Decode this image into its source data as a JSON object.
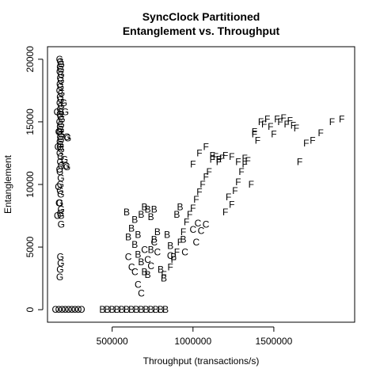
{
  "chart_data": {
    "type": "scatter",
    "title_line1": "SyncClock Partitioned",
    "title_line2": "Entanglement vs. Throughput",
    "xlabel": "Throughput (transactions/s)",
    "ylabel": "Entanglement",
    "xlim": [
      100000,
      2000000
    ],
    "ylim": [
      -1000,
      21000
    ],
    "x_ticks": [
      500000,
      1000000,
      1500000
    ],
    "x_tick_labels": [
      "500000",
      "1000000",
      "1500000"
    ],
    "y_ticks": [
      0,
      5000,
      10000,
      15000,
      20000
    ],
    "y_tick_labels": [
      "0",
      "5000",
      "10000",
      "15000",
      "20000"
    ],
    "grid": false,
    "series": [
      {
        "symbol": "G",
        "points": [
          [
            175000,
            20000
          ],
          [
            180000,
            19800
          ],
          [
            185000,
            19600
          ],
          [
            178000,
            19400
          ],
          [
            182000,
            19200
          ],
          [
            176000,
            19000
          ],
          [
            184000,
            18800
          ],
          [
            179000,
            18500
          ],
          [
            183000,
            18300
          ],
          [
            177000,
            18000
          ],
          [
            181000,
            17800
          ],
          [
            175000,
            17500
          ],
          [
            186000,
            17300
          ],
          [
            178000,
            17000
          ],
          [
            182000,
            16800
          ],
          [
            176000,
            16500
          ],
          [
            185000,
            16300
          ],
          [
            179000,
            16000
          ],
          [
            183000,
            15800
          ],
          [
            177000,
            15600
          ],
          [
            181000,
            15400
          ],
          [
            188000,
            15200
          ],
          [
            175000,
            15000
          ],
          [
            184000,
            14800
          ],
          [
            178000,
            14600
          ],
          [
            182000,
            14400
          ],
          [
            176000,
            14200
          ],
          [
            185000,
            14000
          ],
          [
            179000,
            13800
          ],
          [
            183000,
            13600
          ],
          [
            177000,
            13400
          ],
          [
            181000,
            13200
          ],
          [
            178000,
            13000
          ],
          [
            184000,
            12800
          ],
          [
            176000,
            12500
          ],
          [
            182000,
            12200
          ],
          [
            179000,
            11800
          ],
          [
            185000,
            11500
          ],
          [
            177000,
            11000
          ],
          [
            183000,
            10500
          ],
          [
            180000,
            10000
          ],
          [
            178000,
            9500
          ],
          [
            182000,
            9200
          ],
          [
            176000,
            8500
          ],
          [
            184000,
            8000
          ],
          [
            180000,
            7700
          ],
          [
            183000,
            7500
          ],
          [
            185000,
            6800
          ],
          [
            180000,
            4200
          ],
          [
            182000,
            3700
          ],
          [
            178000,
            3200
          ],
          [
            176000,
            2600
          ],
          [
            200000,
            16500
          ],
          [
            210000,
            15800
          ],
          [
            220000,
            13800
          ],
          [
            225000,
            13700
          ],
          [
            205000,
            12000
          ],
          [
            215000,
            11500
          ],
          [
            220000,
            11400
          ]
        ]
      },
      {
        "symbol": "O",
        "points": [
          [
            150000,
            0
          ],
          [
            170000,
            0
          ],
          [
            190000,
            0
          ],
          [
            210000,
            0
          ],
          [
            230000,
            0
          ],
          [
            250000,
            0
          ],
          [
            270000,
            0
          ],
          [
            290000,
            0
          ],
          [
            310000,
            0
          ],
          [
            160000,
            15800
          ],
          [
            170000,
            14200
          ],
          [
            165000,
            13000
          ],
          [
            175000,
            11200
          ],
          [
            168000,
            9800
          ],
          [
            172000,
            8500
          ],
          [
            162000,
            7500
          ]
        ]
      },
      {
        "symbol": "B",
        "points": [
          [
            440000,
            0
          ],
          [
            470000,
            0
          ],
          [
            500000,
            0
          ],
          [
            530000,
            0
          ],
          [
            560000,
            0
          ],
          [
            590000,
            0
          ],
          [
            620000,
            0
          ],
          [
            650000,
            0
          ],
          [
            680000,
            0
          ],
          [
            710000,
            0
          ],
          [
            740000,
            0
          ],
          [
            770000,
            0
          ],
          [
            800000,
            0
          ],
          [
            830000,
            0
          ],
          [
            590000,
            7800
          ],
          [
            600000,
            5800
          ],
          [
            620000,
            6500
          ],
          [
            640000,
            7200
          ],
          [
            660000,
            6000
          ],
          [
            680000,
            7600
          ],
          [
            700000,
            8200
          ],
          [
            720000,
            8000
          ],
          [
            740000,
            7400
          ],
          [
            760000,
            8000
          ],
          [
            640000,
            5200
          ],
          [
            660000,
            4400
          ],
          [
            680000,
            3800
          ],
          [
            700000,
            3000
          ],
          [
            720000,
            2800
          ],
          [
            740000,
            4800
          ],
          [
            760000,
            5600
          ],
          [
            780000,
            6200
          ],
          [
            800000,
            3200
          ],
          [
            820000,
            2500
          ],
          [
            840000,
            6000
          ],
          [
            860000,
            5100
          ],
          [
            880000,
            4200
          ],
          [
            900000,
            7600
          ],
          [
            920000,
            8200
          ],
          [
            940000,
            5600
          ]
        ]
      },
      {
        "symbol": "C",
        "points": [
          [
            600000,
            4200
          ],
          [
            620000,
            3400
          ],
          [
            640000,
            3000
          ],
          [
            660000,
            2000
          ],
          [
            680000,
            1300
          ],
          [
            700000,
            4800
          ],
          [
            720000,
            4000
          ],
          [
            740000,
            3500
          ],
          [
            760000,
            5400
          ],
          [
            780000,
            4600
          ],
          [
            860000,
            4300
          ],
          [
            1000000,
            6400
          ],
          [
            1020000,
            5400
          ],
          [
            1030000,
            6900
          ],
          [
            1050000,
            6300
          ],
          [
            1080000,
            6800
          ],
          [
            950000,
            4600
          ]
        ]
      },
      {
        "symbol": "F",
        "points": [
          [
            820000,
            2800
          ],
          [
            860000,
            3400
          ],
          [
            880000,
            4000
          ],
          [
            900000,
            4600
          ],
          [
            920000,
            5400
          ],
          [
            940000,
            6200
          ],
          [
            960000,
            7000
          ],
          [
            980000,
            7600
          ],
          [
            1000000,
            8100
          ],
          [
            1020000,
            8800
          ],
          [
            1040000,
            9400
          ],
          [
            1060000,
            10000
          ],
          [
            1080000,
            10600
          ],
          [
            1100000,
            11000
          ],
          [
            1120000,
            12000
          ],
          [
            1140000,
            12200
          ],
          [
            1160000,
            11800
          ],
          [
            1180000,
            12100
          ],
          [
            1200000,
            7800
          ],
          [
            1220000,
            9000
          ],
          [
            1240000,
            8400
          ],
          [
            1260000,
            9500
          ],
          [
            1280000,
            10200
          ],
          [
            1300000,
            11000
          ],
          [
            1320000,
            11600
          ],
          [
            1340000,
            11900
          ],
          [
            1360000,
            10000
          ],
          [
            1380000,
            14200
          ],
          [
            1400000,
            13500
          ],
          [
            1420000,
            15000
          ],
          [
            1440000,
            14800
          ],
          [
            1460000,
            15200
          ],
          [
            1480000,
            14600
          ],
          [
            1500000,
            14000
          ],
          [
            1520000,
            15200
          ],
          [
            1540000,
            15000
          ],
          [
            1560000,
            15300
          ],
          [
            1580000,
            14800
          ],
          [
            1600000,
            15100
          ],
          [
            1620000,
            14700
          ],
          [
            1640000,
            14500
          ],
          [
            1660000,
            11800
          ],
          [
            1700000,
            13300
          ],
          [
            1740000,
            13500
          ],
          [
            1790000,
            14100
          ],
          [
            1860000,
            15000
          ],
          [
            1920000,
            15200
          ],
          [
            1000000,
            11600
          ],
          [
            1040000,
            12500
          ],
          [
            1080000,
            13000
          ],
          [
            1120000,
            12300
          ],
          [
            1160000,
            12000
          ],
          [
            1200000,
            12300
          ],
          [
            1240000,
            12200
          ],
          [
            1280000,
            11800
          ],
          [
            1320000,
            12100
          ],
          [
            1380000,
            14000
          ]
        ]
      }
    ]
  }
}
